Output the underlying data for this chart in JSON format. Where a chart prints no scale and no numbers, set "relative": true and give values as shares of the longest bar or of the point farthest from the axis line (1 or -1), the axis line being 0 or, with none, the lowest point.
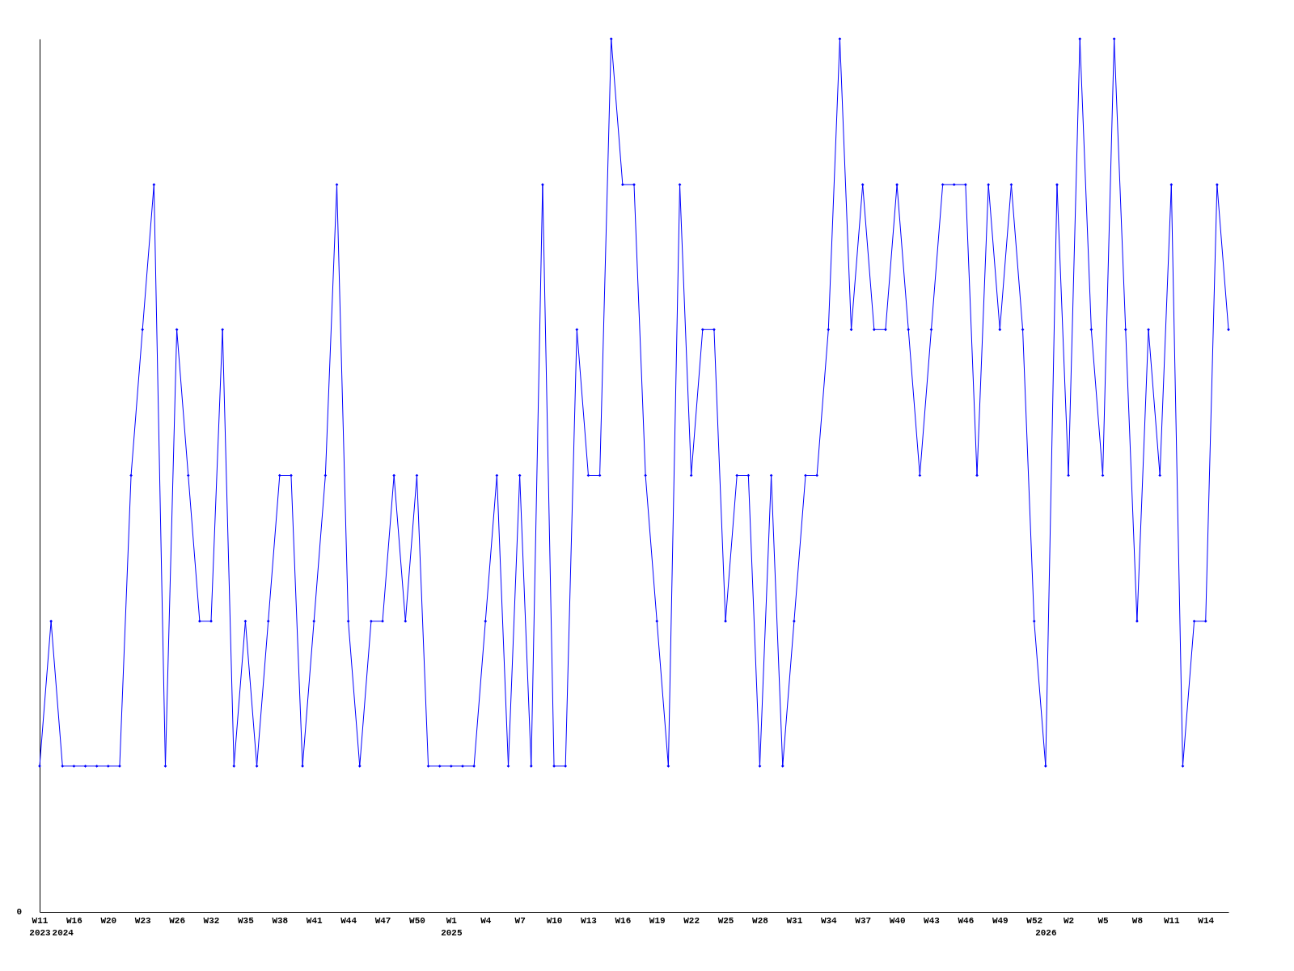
{
  "chart_data": {
    "type": "line",
    "relative": true,
    "marker": "diamond",
    "line_style": "solid",
    "grid": false,
    "categories": [
      "W11\n2023",
      null,
      "\n2024",
      "W16",
      null,
      null,
      "W20",
      null,
      null,
      "W23",
      null,
      null,
      "W26",
      null,
      null,
      "W32",
      null,
      null,
      "W35",
      null,
      null,
      "W38",
      null,
      null,
      "W41",
      null,
      null,
      "W44",
      null,
      null,
      "W47",
      null,
      null,
      "W50",
      null,
      null,
      "W1\n2025",
      null,
      null,
      "W4",
      null,
      null,
      "W7",
      null,
      null,
      "W10",
      null,
      null,
      "W13",
      null,
      null,
      "W16",
      null,
      null,
      "W19",
      null,
      null,
      "W22",
      null,
      null,
      "W25",
      null,
      null,
      "W28",
      null,
      null,
      "W31",
      null,
      null,
      "W34",
      null,
      null,
      "W37",
      null,
      null,
      "W40",
      null,
      null,
      "W43",
      null,
      null,
      "W46",
      null,
      null,
      "W49",
      null,
      null,
      "W52",
      "\n2026",
      null,
      "W2",
      null,
      null,
      "W5",
      null,
      null,
      "W8",
      null,
      null,
      "W11",
      null,
      null,
      "W14",
      null,
      null
    ],
    "series": [
      {
        "color": "#0000ff",
        "values": [
          0.167,
          0.333,
          0.167,
          0.167,
          0.167,
          0.167,
          0.167,
          0.167,
          0.5,
          0.667,
          0.833,
          0.167,
          0.667,
          0.5,
          0.333,
          0.333,
          0.667,
          0.167,
          0.333,
          0.167,
          0.333,
          0.5,
          0.5,
          0.167,
          0.333,
          0.5,
          0.833,
          0.333,
          0.167,
          0.333,
          0.333,
          0.5,
          0.333,
          0.5,
          0.167,
          0.167,
          0.167,
          0.167,
          0.167,
          0.333,
          0.5,
          0.167,
          0.5,
          0.167,
          0.833,
          0.167,
          0.167,
          0.667,
          0.5,
          0.5,
          1,
          0.833,
          0.833,
          0.5,
          0.333,
          0.167,
          0.833,
          0.5,
          0.667,
          0.667,
          0.333,
          0.5,
          0.5,
          0.167,
          0.5,
          0.167,
          0.333,
          0.5,
          0.5,
          0.667,
          1,
          0.667,
          0.833,
          0.667,
          0.667,
          0.833,
          0.667,
          0.5,
          0.667,
          0.833,
          0.833,
          0.833,
          0.5,
          0.833,
          0.667,
          0.833,
          0.667,
          0.333,
          0.167,
          0.833,
          0.5,
          1,
          0.667,
          0.5,
          1,
          0.667,
          0.333,
          0.667,
          0.5,
          0.833,
          0.167,
          0.333,
          0.333,
          0.833,
          0.667
        ]
      }
    ],
    "annotations": [
      "0"
    ]
  }
}
